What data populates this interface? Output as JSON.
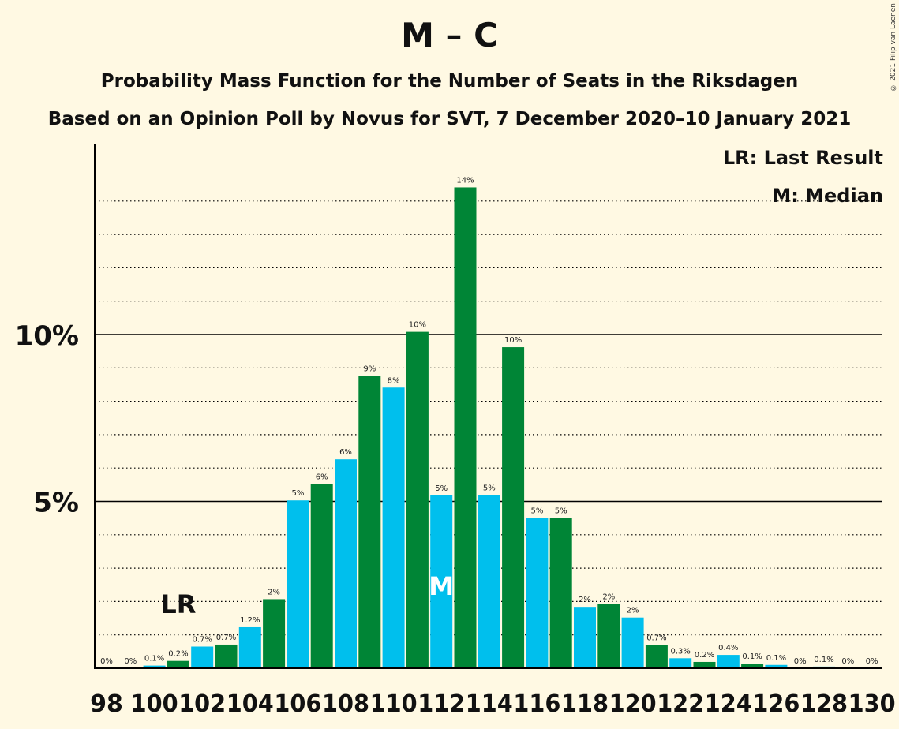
{
  "title": "M – C",
  "subtitle": "Probability Mass Function for the Number of Seats in the Riksdagen",
  "subtitle2": "Based on an Opinion Poll by Novus for SVT, 7 December 2020–10 January 2021",
  "copyright": "© 2021 Filip van Laenen",
  "legend": {
    "last_result": "LR: Last Result",
    "median": "M: Median"
  },
  "colors": {
    "bar_a": "#00bfed",
    "bar_b": "#008536",
    "background": "#fff9e3",
    "axis": "#000000"
  },
  "chart_data": {
    "type": "bar",
    "title": "M – C",
    "x": [
      98,
      99,
      100,
      101,
      102,
      103,
      104,
      105,
      106,
      107,
      108,
      109,
      110,
      111,
      112,
      113,
      114,
      115,
      116,
      117,
      118,
      119,
      120,
      121,
      122,
      123,
      124,
      125,
      126,
      127,
      128,
      129,
      130
    ],
    "values": [
      0,
      0,
      0.1,
      0.2,
      0.7,
      0.7,
      1.2,
      2,
      5,
      6,
      6,
      9,
      8,
      10,
      5,
      14,
      5,
      10,
      5,
      5,
      2,
      2,
      2,
      0.7,
      0.3,
      0.2,
      0.4,
      0.1,
      0.1,
      0,
      0.1,
      0,
      0
    ],
    "plotted_values": [
      0,
      0,
      0.08,
      0.22,
      0.65,
      0.71,
      1.23,
      2.07,
      5.03,
      5.52,
      6.26,
      8.76,
      8.41,
      10.08,
      5.18,
      14.41,
      5.19,
      9.62,
      4.5,
      4.5,
      1.84,
      1.93,
      1.52,
      0.7,
      0.3,
      0.19,
      0.4,
      0.14,
      0.1,
      0,
      0.05,
      0,
      0
    ],
    "labels": [
      "0%",
      "0%",
      "0.1%",
      "0.2%",
      "0.7%",
      "0.7%",
      "1.2%",
      "2%",
      "5%",
      "6%",
      "6%",
      "9%",
      "8%",
      "10%",
      "5%",
      "14%",
      "5%",
      "10%",
      "5%",
      "5%",
      "2%",
      "2%",
      "2%",
      "0.7%",
      "0.3%",
      "0.2%",
      "0.4%",
      "0.1%",
      "0.1%",
      "0%",
      "0.1%",
      "0%",
      "0%"
    ],
    "xtick_labels": [
      "98",
      "100",
      "102",
      "104",
      "106",
      "108",
      "110",
      "112",
      "114",
      "116",
      "118",
      "120",
      "122",
      "124",
      "126",
      "128",
      "130"
    ],
    "ytick_labels": [
      "5%",
      "10%"
    ],
    "ytick_values": [
      5,
      10
    ],
    "ylim": [
      0,
      15.5
    ],
    "last_result": {
      "x": 101,
      "label": "LR"
    },
    "median": {
      "x": 112,
      "label": "M"
    },
    "grid": "dotted every 1%, solid at 5% and 10%"
  }
}
